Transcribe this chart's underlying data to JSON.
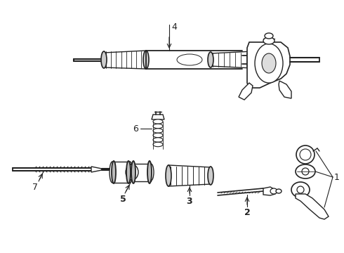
{
  "bg_color": "#ffffff",
  "lc": "#222222",
  "lw": 1.0,
  "figsize": [
    4.9,
    3.6
  ],
  "dpi": 100,
  "xlim": [
    0,
    490
  ],
  "ylim": [
    0,
    360
  ]
}
